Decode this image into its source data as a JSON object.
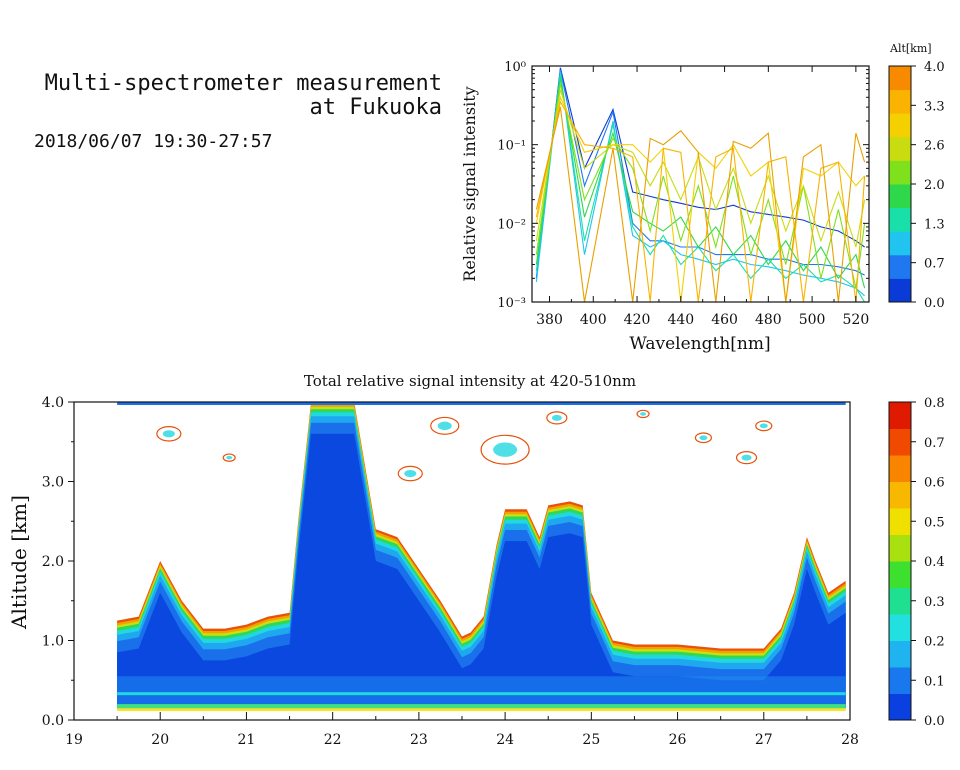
{
  "title": {
    "line1": "Multi-spectrometer measurement",
    "line2": "at Fukuoka",
    "datetime": "2018/06/07 19:30-27:57"
  },
  "chart_data": [
    {
      "type": "line",
      "panel": "spectra",
      "title": "",
      "xlabel": "Wavelength[nm]",
      "ylabel": "Relative signal intensity",
      "xlim": [
        372,
        526
      ],
      "ylim": [
        0.001,
        1
      ],
      "yscale": "log",
      "xticks": [
        380,
        400,
        420,
        440,
        460,
        480,
        500,
        520
      ],
      "yticks": [
        0.001,
        0.01,
        0.1,
        1
      ],
      "ytick_labels": [
        "10⁻³",
        "10⁻²",
        "10⁻¹",
        "10⁰"
      ],
      "x": [
        374,
        385,
        396,
        409,
        418,
        426,
        432,
        440,
        448,
        456,
        464,
        472,
        480,
        488,
        496,
        504,
        512,
        520,
        524
      ],
      "colorbar": {
        "label": "Alt[km]",
        "ticks": [
          "0.0",
          "0.7",
          "1.3",
          "2.0",
          "2.6",
          "3.3",
          "4.0"
        ],
        "range": [
          0.0,
          4.0
        ],
        "colors": [
          "#0a3bd6",
          "#1f78f0",
          "#21c4ee",
          "#19e0a8",
          "#2fd84a",
          "#7fe01c",
          "#c8dc10",
          "#f4d000",
          "#f9b300",
          "#f88a00"
        ]
      },
      "series": [
        {
          "alt": 0.05,
          "color": "#0a3bd6",
          "values": [
            0.002,
            0.95,
            0.05,
            0.28,
            0.025,
            0.022,
            0.02,
            0.018,
            0.016,
            0.015,
            0.017,
            0.014,
            0.013,
            0.012,
            0.011,
            0.009,
            0.008,
            0.006,
            0.005
          ]
        },
        {
          "alt": 0.3,
          "color": "#1f78f0",
          "values": [
            0.002,
            0.9,
            0.03,
            0.26,
            0.01,
            0.006,
            0.006,
            0.005,
            0.005,
            0.004,
            0.004,
            0.004,
            0.0035,
            0.0035,
            0.003,
            0.003,
            0.0028,
            0.0025,
            0.0022
          ]
        },
        {
          "alt": 0.8,
          "color": "#21c4ee",
          "values": [
            0.0018,
            0.85,
            0.004,
            0.2,
            0.007,
            0.005,
            0.006,
            0.004,
            0.0035,
            0.003,
            0.0035,
            0.003,
            0.0028,
            0.0025,
            0.0022,
            0.002,
            0.0018,
            0.0015,
            0.0012
          ]
        },
        {
          "alt": 1.3,
          "color": "#19e0a8",
          "values": [
            0.0025,
            0.8,
            0.006,
            0.18,
            0.009,
            0.004,
            0.007,
            0.003,
            0.005,
            0.0025,
            0.004,
            0.002,
            0.0035,
            0.002,
            0.003,
            0.0018,
            0.0022,
            0.0015,
            0.001
          ]
        },
        {
          "alt": 1.8,
          "color": "#2fd84a",
          "values": [
            0.003,
            0.7,
            0.012,
            0.14,
            0.014,
            0.01,
            0.008,
            0.012,
            0.005,
            0.009,
            0.004,
            0.007,
            0.003,
            0.006,
            0.0025,
            0.005,
            0.002,
            0.004,
            0.0015
          ]
        },
        {
          "alt": 2.3,
          "color": "#7fe01c",
          "values": [
            0.004,
            0.6,
            0.02,
            0.12,
            0.05,
            0.008,
            0.04,
            0.006,
            0.03,
            0.005,
            0.04,
            0.004,
            0.02,
            0.003,
            0.03,
            0.002,
            0.015,
            0.0015,
            0.01
          ]
        },
        {
          "alt": 2.7,
          "color": "#c8dc10",
          "values": [
            0.006,
            0.5,
            0.05,
            0.1,
            0.08,
            0.03,
            0.06,
            0.02,
            0.07,
            0.015,
            0.05,
            0.01,
            0.04,
            0.008,
            0.03,
            0.006,
            0.025,
            0.005,
            0.02
          ]
        },
        {
          "alt": 3.1,
          "color": "#f4d000",
          "values": [
            0.01,
            0.4,
            0.08,
            0.1,
            0.1,
            0.06,
            0.09,
            0.001,
            0.08,
            0.05,
            0.1,
            0.04,
            0.06,
            0.001,
            0.05,
            0.04,
            0.06,
            0.03,
            0.04
          ]
        },
        {
          "alt": 3.5,
          "color": "#f9b300",
          "values": [
            0.012,
            0.35,
            0.1,
            0.09,
            0.07,
            0.001,
            0.09,
            0.08,
            0.001,
            0.07,
            0.09,
            0.001,
            0.06,
            0.07,
            0.001,
            0.05,
            0.06,
            0.001,
            0.04
          ]
        },
        {
          "alt": 3.9,
          "color": "#e8a000",
          "values": [
            0.015,
            0.3,
            0.001,
            0.09,
            0.001,
            0.12,
            0.1,
            0.15,
            0.08,
            0.001,
            0.11,
            0.09,
            0.14,
            0.001,
            0.07,
            0.1,
            0.001,
            0.14,
            0.06
          ]
        }
      ]
    },
    {
      "type": "heatmap",
      "panel": "time-altitude",
      "title": "Total relative signal intensity at 420-510nm",
      "xlabel": "",
      "ylabel": "Altitude [km]",
      "xlim": [
        19,
        28
      ],
      "ylim": [
        0.0,
        4.0
      ],
      "xticks": [
        19,
        20,
        21,
        22,
        23,
        24,
        25,
        26,
        27,
        28
      ],
      "yticks": [
        "0.0",
        "1.0",
        "2.0",
        "3.0",
        "4.0"
      ],
      "colorbar": {
        "ticks": [
          "0.0",
          "0.1",
          "0.2",
          "0.3",
          "0.4",
          "0.5",
          "0.6",
          "0.7",
          "0.8"
        ],
        "range": [
          0.0,
          0.8
        ],
        "colors": [
          "#0a40e0",
          "#1a78ee",
          "#1fb4f0",
          "#22e0e0",
          "#1fe090",
          "#3ee030",
          "#a8e010",
          "#f0e000",
          "#f8b800",
          "#f88400",
          "#f04a00",
          "#e01a00"
        ]
      },
      "data_start_hour": 19.5,
      "data_end_hour": 27.95,
      "cloud_base_km": {
        "hours": [
          19.5,
          19.75,
          20.0,
          20.25,
          20.5,
          20.75,
          21.0,
          21.25,
          21.5,
          21.6,
          21.75,
          22.0,
          22.25,
          22.5,
          22.75,
          23.0,
          23.25,
          23.5,
          23.6,
          23.75,
          23.9,
          24.0,
          24.25,
          24.4,
          24.5,
          24.75,
          24.9,
          25.0,
          25.25,
          25.5,
          25.75,
          26.0,
          26.5,
          27.0,
          27.2,
          27.35,
          27.5,
          27.6,
          27.75,
          27.95
        ],
        "values": [
          1.25,
          1.3,
          2.0,
          1.5,
          1.15,
          1.15,
          1.2,
          1.3,
          1.35,
          2.5,
          4.0,
          4.0,
          4.0,
          2.4,
          2.3,
          1.9,
          1.5,
          1.05,
          1.1,
          1.3,
          2.2,
          2.65,
          2.65,
          2.3,
          2.7,
          2.75,
          2.7,
          1.6,
          1.0,
          0.95,
          0.95,
          0.95,
          0.9,
          0.9,
          1.15,
          1.6,
          2.3,
          2.0,
          1.6,
          1.75
        ]
      },
      "cloud_intensity": {
        "description_levels": "blue body ~0.05-0.15, thin green/yellow/orange edge ~0.3-0.8 at cloud boundary",
        "surface_layer_km": [
          0.15,
          0.35
        ]
      }
    }
  ]
}
